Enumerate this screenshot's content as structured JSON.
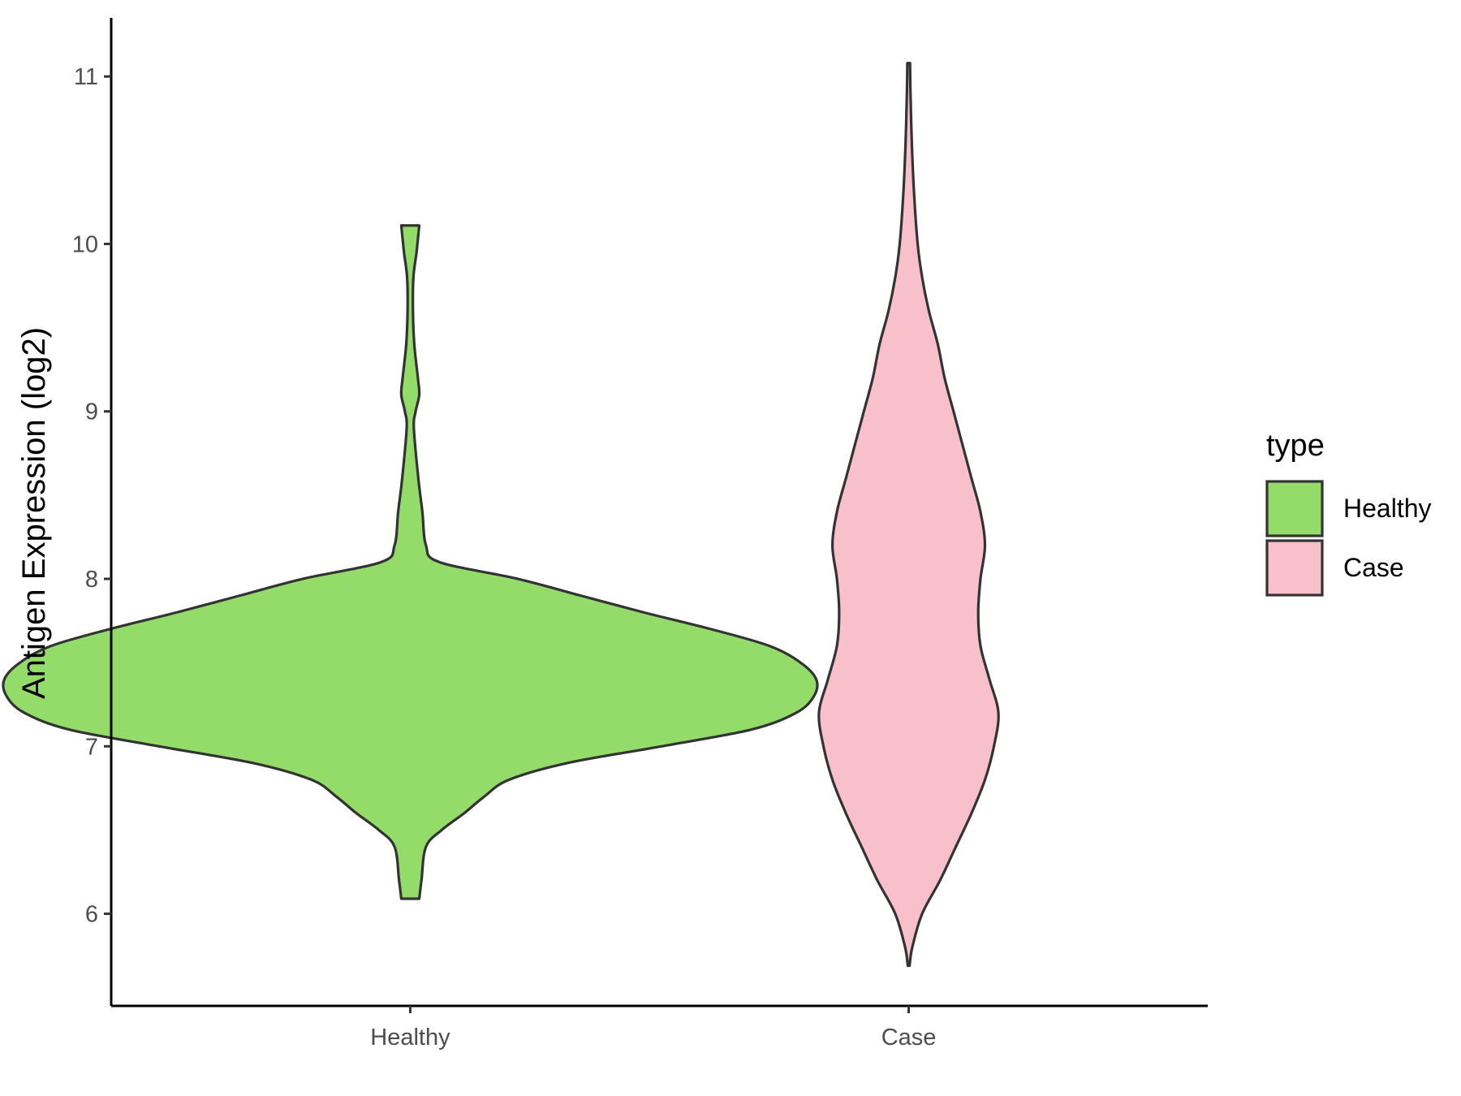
{
  "chart_data": {
    "type": "violin",
    "xlabel": "",
    "ylabel": "Antigen Expression (log2)",
    "ylim": [
      5.45,
      11.35
    ],
    "yticks": [
      6,
      7,
      8,
      9,
      10,
      11
    ],
    "ytick_labels": [
      "6",
      "7",
      "8",
      "9",
      "10",
      "11"
    ],
    "categories": [
      "Healthy",
      "Case"
    ],
    "grid": false,
    "legend": {
      "title": "type",
      "placement": "right",
      "entries": [
        {
          "label": "Healthy",
          "color": "#93DC6A"
        },
        {
          "label": "Case",
          "color": "#F7C0CB"
        }
      ]
    },
    "series": [
      {
        "name": "Healthy",
        "color": "#93DC6A",
        "y_min": 6.09,
        "y_max": 10.11,
        "density_half_width": [
          [
            6.09,
            0.02
          ],
          [
            6.2,
            0.025
          ],
          [
            6.4,
            0.035
          ],
          [
            6.5,
            0.07
          ],
          [
            6.6,
            0.12
          ],
          [
            6.7,
            0.165
          ],
          [
            6.8,
            0.22
          ],
          [
            6.9,
            0.35
          ],
          [
            7.0,
            0.56
          ],
          [
            7.1,
            0.76
          ],
          [
            7.2,
            0.86
          ],
          [
            7.3,
            0.9
          ],
          [
            7.4,
            0.905
          ],
          [
            7.5,
            0.87
          ],
          [
            7.6,
            0.8
          ],
          [
            7.7,
            0.67
          ],
          [
            7.8,
            0.52
          ],
          [
            7.9,
            0.38
          ],
          [
            8.0,
            0.24
          ],
          [
            8.1,
            0.065
          ],
          [
            8.2,
            0.035
          ],
          [
            8.4,
            0.027
          ],
          [
            8.6,
            0.018
          ],
          [
            8.9,
            0.008
          ],
          [
            9.0,
            0.012
          ],
          [
            9.1,
            0.02
          ],
          [
            9.2,
            0.017
          ],
          [
            9.4,
            0.009
          ],
          [
            9.6,
            0.006
          ],
          [
            9.8,
            0.007
          ],
          [
            9.95,
            0.014
          ],
          [
            10.11,
            0.02
          ]
        ]
      },
      {
        "name": "Case",
        "color": "#F7C0CB",
        "y_min": 5.69,
        "y_max": 11.08,
        "density_half_width": [
          [
            5.69,
            0.002
          ],
          [
            5.8,
            0.008
          ],
          [
            6.0,
            0.03
          ],
          [
            6.2,
            0.07
          ],
          [
            6.4,
            0.105
          ],
          [
            6.6,
            0.14
          ],
          [
            6.8,
            0.17
          ],
          [
            7.0,
            0.19
          ],
          [
            7.2,
            0.2
          ],
          [
            7.4,
            0.18
          ],
          [
            7.6,
            0.16
          ],
          [
            7.8,
            0.155
          ],
          [
            8.0,
            0.16
          ],
          [
            8.2,
            0.17
          ],
          [
            8.4,
            0.16
          ],
          [
            8.6,
            0.14
          ],
          [
            8.8,
            0.12
          ],
          [
            9.0,
            0.1
          ],
          [
            9.2,
            0.08
          ],
          [
            9.4,
            0.065
          ],
          [
            9.6,
            0.045
          ],
          [
            9.8,
            0.03
          ],
          [
            10.0,
            0.02
          ],
          [
            10.3,
            0.012
          ],
          [
            10.6,
            0.007
          ],
          [
            10.9,
            0.004
          ],
          [
            11.08,
            0.003
          ]
        ]
      }
    ]
  }
}
